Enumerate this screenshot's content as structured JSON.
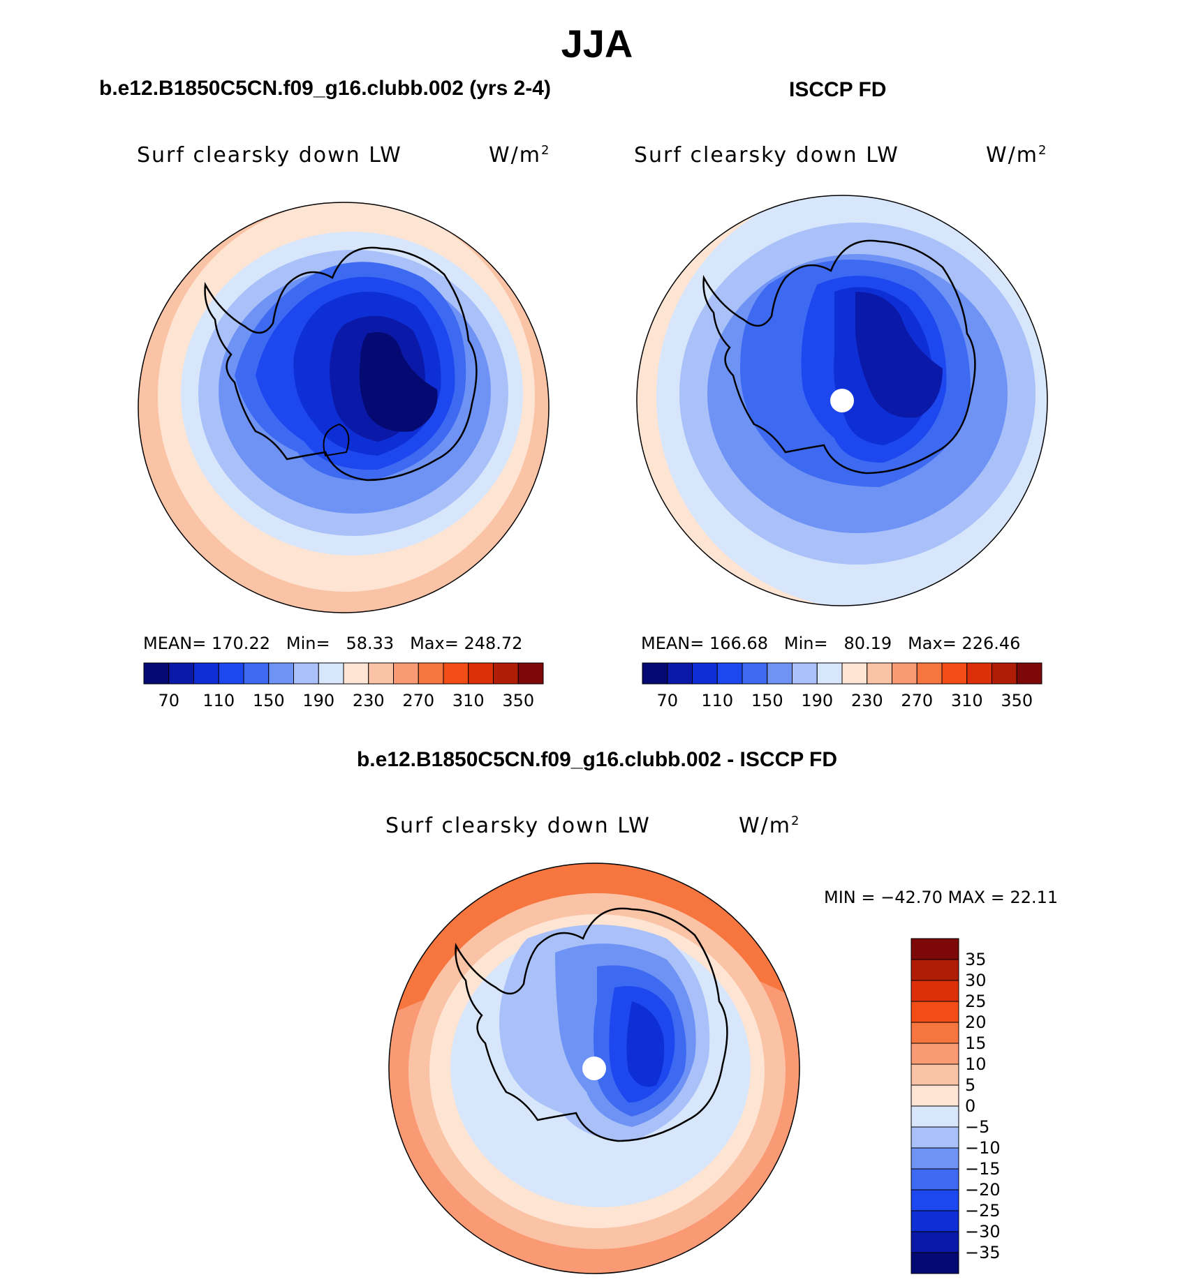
{
  "title": "JJA",
  "panels": {
    "model": {
      "title": "b.e12.B1850C5CN.f09_g16.clubb.002 (yrs 2-4)",
      "variable": "Surf clearsky down LW",
      "units": "W/m",
      "units_exp": "2",
      "stats": {
        "mean_label": "MEAN=",
        "mean": "170.22",
        "min_label": "Min=",
        "min": "58.33",
        "max_label": "Max=",
        "max": "248.72"
      }
    },
    "obs": {
      "title": "ISCCP FD",
      "variable": "Surf clearsky down LW",
      "units": "W/m",
      "units_exp": "2",
      "stats": {
        "mean_label": "MEAN=",
        "mean": "166.68",
        "min_label": "Min=",
        "min": "80.19",
        "max_label": "Max=",
        "max": "226.46"
      }
    },
    "diff": {
      "title": "b.e12.B1850C5CN.f09_g16.clubb.002 - ISCCP FD",
      "variable": "Surf clearsky down LW",
      "units": "W/m",
      "units_exp": "2",
      "minmax": "MIN = −42.70 MAX =  22.11"
    }
  },
  "chart_data": [
    {
      "type": "heatmap",
      "projection": "south-polar-stereographic",
      "title": "b.e12.B1850C5CN.f09_g16.clubb.002 (yrs 2-4)",
      "variable": "Surf clearsky down LW",
      "units": "W/m2",
      "mean": 170.22,
      "min": 58.33,
      "max": 248.72,
      "levels": [
        70,
        90,
        110,
        130,
        150,
        170,
        190,
        210,
        230,
        250,
        270,
        290,
        310,
        330,
        350
      ],
      "tick_labels": [
        "70",
        "110",
        "150",
        "190",
        "230",
        "270",
        "310",
        "350"
      ],
      "colors": [
        "#050a72",
        "#0a19a8",
        "#0e2fd6",
        "#1d48f0",
        "#3e6af2",
        "#6f93f5",
        "#a9c1f8",
        "#d8e6fc",
        "#fde4d3",
        "#fbc3a6",
        "#f99a74",
        "#f7753f",
        "#f24d16",
        "#db300a",
        "#b01d07",
        "#7c0808"
      ]
    },
    {
      "type": "heatmap",
      "projection": "south-polar-stereographic",
      "title": "ISCCP FD",
      "variable": "Surf clearsky down LW",
      "units": "W/m2",
      "mean": 166.68,
      "min": 80.19,
      "max": 226.46,
      "levels": [
        70,
        90,
        110,
        130,
        150,
        170,
        190,
        210,
        230,
        250,
        270,
        290,
        310,
        330,
        350
      ],
      "tick_labels": [
        "70",
        "110",
        "150",
        "190",
        "230",
        "270",
        "310",
        "350"
      ],
      "colors": [
        "#050a72",
        "#0a19a8",
        "#0e2fd6",
        "#1d48f0",
        "#3e6af2",
        "#6f93f5",
        "#a9c1f8",
        "#d8e6fc",
        "#fde4d3",
        "#fbc3a6",
        "#f99a74",
        "#f7753f",
        "#f24d16",
        "#db300a",
        "#b01d07",
        "#7c0808"
      ]
    },
    {
      "type": "heatmap",
      "projection": "south-polar-stereographic",
      "title": "b.e12.B1850C5CN.f09_g16.clubb.002 - ISCCP FD",
      "variable": "Surf clearsky down LW",
      "units": "W/m2",
      "min": -42.7,
      "max": 22.11,
      "levels": [
        35,
        30,
        25,
        20,
        15,
        10,
        5,
        0,
        -5,
        -10,
        -15,
        -20,
        -25,
        -30,
        -35
      ],
      "tick_labels": [
        "35",
        "30",
        "25",
        "20",
        "15",
        "10",
        "5",
        "0",
        "−5",
        "−10",
        "−15",
        "−20",
        "−25",
        "−30",
        "−35"
      ],
      "colors": [
        "#7c0808",
        "#b01d07",
        "#db300a",
        "#f24d16",
        "#f7753f",
        "#f99a74",
        "#fbc3a6",
        "#fde4d3",
        "#d8e6fc",
        "#a9c1f8",
        "#6f93f5",
        "#3e6af2",
        "#1d48f0",
        "#0e2fd6",
        "#0a19a8",
        "#050a72"
      ]
    }
  ]
}
